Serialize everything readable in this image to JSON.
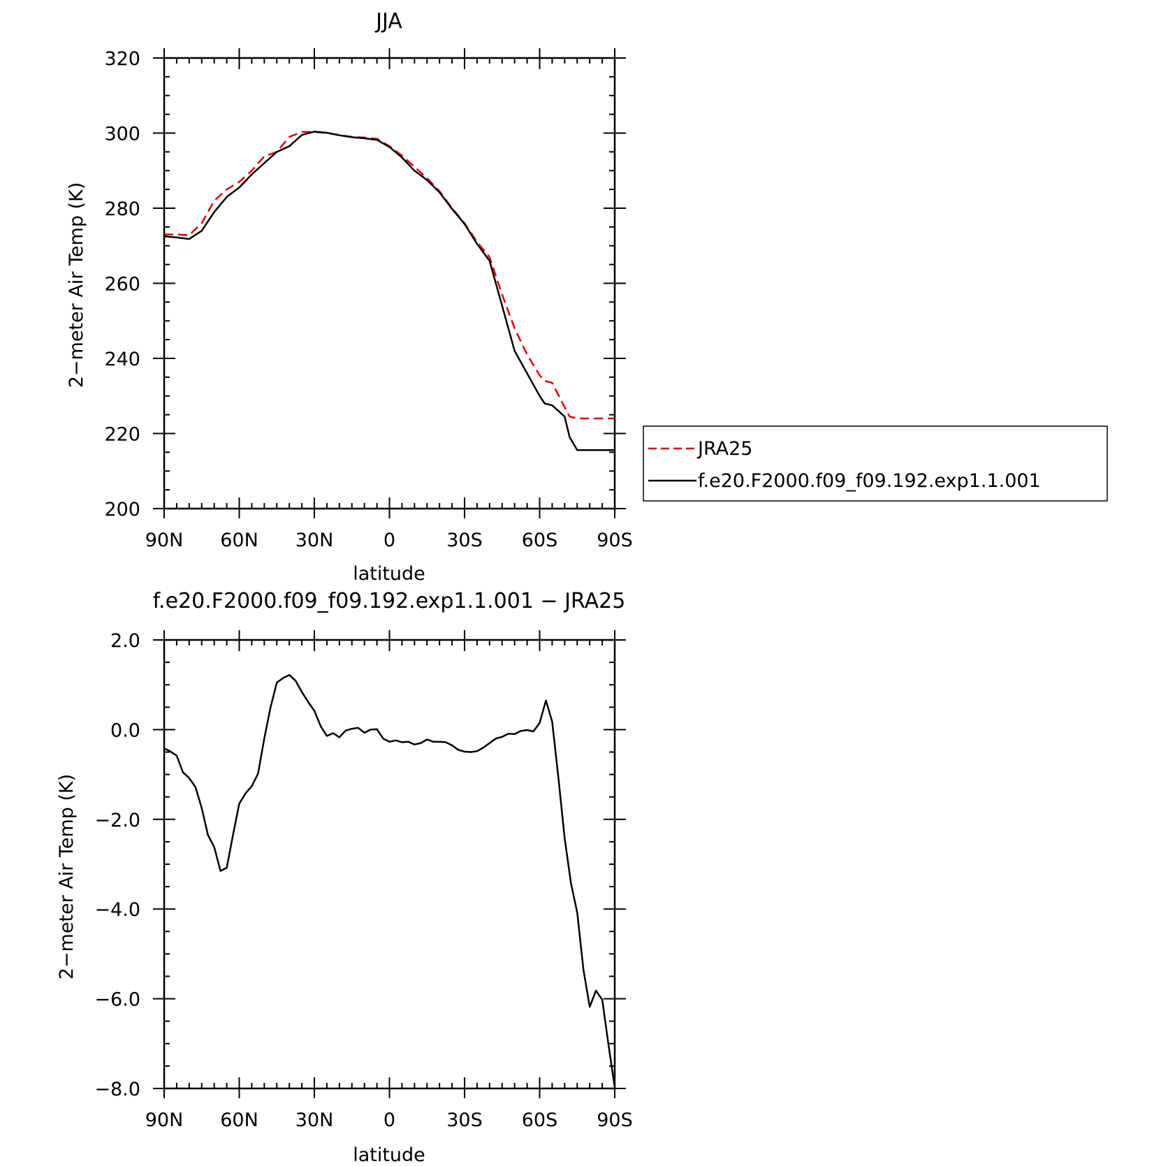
{
  "chart_data": [
    {
      "type": "line",
      "title": "JJA",
      "xlabel": "latitude",
      "ylabel": "2−meter Air Temp (K)",
      "xlim": [
        90,
        -90
      ],
      "ylim": [
        200,
        320
      ],
      "x_ticks": [
        90,
        60,
        30,
        0,
        -30,
        -60,
        -90
      ],
      "x_tick_labels": [
        "90N",
        "60N",
        "30N",
        "0",
        "30S",
        "60S",
        "90S"
      ],
      "y_ticks": [
        200,
        220,
        240,
        260,
        280,
        300,
        320
      ],
      "y_tick_labels": [
        "200",
        "220",
        "240",
        "260",
        "280",
        "300",
        "320"
      ],
      "grid": false,
      "legend": {
        "placement": "right-outside",
        "entries": [
          {
            "label": "JRA25",
            "color": "#e00000",
            "dash": "dashed"
          },
          {
            "label": "f.e20.F2000.f09_f09.192.exp1.1.001",
            "color": "#000000",
            "dash": "solid"
          }
        ]
      },
      "x": [
        90,
        85,
        80,
        75,
        70,
        65,
        60,
        55,
        50,
        45,
        40,
        35,
        30,
        25,
        20,
        15,
        10,
        5,
        0,
        -5,
        -10,
        -15,
        -20,
        -25,
        -30,
        -35,
        -40,
        -45,
        -50,
        -55,
        -60,
        -62,
        -65,
        -70,
        -72,
        -75,
        -80,
        -83,
        -85,
        -87,
        -90
      ],
      "series": [
        {
          "name": "JRA25",
          "color": "#e00000",
          "dash": "dashed",
          "values": [
            273,
            273,
            272.8,
            276,
            282,
            285,
            287,
            290,
            293.8,
            295,
            299,
            300.3,
            300.3,
            300,
            299.5,
            299,
            298.8,
            298.5,
            296.5,
            294,
            291,
            288,
            284.5,
            280,
            276,
            271,
            267,
            257,
            248,
            241,
            235.5,
            234,
            233.5,
            227,
            224.5,
            224,
            224,
            224,
            224,
            224,
            224
          ]
        },
        {
          "name": "f.e20.F2000.f09_f09.192.exp1.1.001",
          "color": "#000000",
          "dash": "solid",
          "values": [
            272.5,
            272.2,
            271.8,
            274,
            279,
            283,
            285.5,
            289,
            292,
            295,
            296.5,
            299.5,
            300.4,
            300.1,
            299.4,
            298.9,
            298.6,
            298.2,
            296.3,
            293.5,
            290,
            287.5,
            284.2,
            279.8,
            275.8,
            270.5,
            266,
            254,
            242,
            236,
            230,
            228,
            227.5,
            224.5,
            219,
            215.6,
            215.6,
            215.6,
            215.6,
            215.6,
            215.6
          ]
        }
      ]
    },
    {
      "type": "line",
      "title": "f.e20.F2000.f09_f09.192.exp1.1.001 − JRA25",
      "xlabel": "latitude",
      "ylabel": "2−meter Air Temp (K)",
      "xlim": [
        90,
        -90
      ],
      "ylim": [
        -8,
        2
      ],
      "x_ticks": [
        90,
        60,
        30,
        0,
        -30,
        -60,
        -90
      ],
      "x_tick_labels": [
        "90N",
        "60N",
        "30N",
        "0",
        "30S",
        "60S",
        "90S"
      ],
      "y_ticks": [
        -8,
        -6,
        -4,
        -2,
        0,
        2
      ],
      "y_tick_labels": [
        "−8.0",
        "−6.0",
        "−4.0",
        "−2.0",
        "0.0",
        "2.0"
      ],
      "grid": false,
      "x": [
        90,
        88,
        85,
        82.5,
        80,
        77.5,
        75,
        72.5,
        70,
        67.5,
        65,
        62.5,
        60,
        57.5,
        55,
        52.5,
        50,
        47.5,
        45,
        42.5,
        40,
        37.5,
        35,
        32.5,
        30,
        27.5,
        25,
        22.5,
        20,
        17.5,
        15,
        12.5,
        10,
        7.5,
        5,
        2.5,
        0,
        -2.5,
        -5,
        -7.5,
        -10,
        -12.5,
        -15,
        -17.5,
        -20,
        -22.5,
        -25,
        -27.5,
        -30,
        -32.5,
        -35,
        -37.5,
        -40,
        -42.5,
        -45,
        -47.5,
        -50,
        -52.5,
        -55,
        -57.5,
        -60,
        -62.5,
        -65,
        -67.5,
        -70,
        -72.5,
        -75,
        -77.5,
        -80,
        -82.5,
        -85,
        -87.5,
        -90
      ],
      "series": [
        {
          "name": "f.e20.F2000.f09_f09.192.exp1.1.001 − JRA25",
          "color": "#000000",
          "dash": "solid",
          "values": [
            -0.42,
            -0.47,
            -0.58,
            -0.95,
            -1.08,
            -1.28,
            -1.75,
            -2.35,
            -2.62,
            -3.15,
            -3.08,
            -2.35,
            -1.65,
            -1.42,
            -1.26,
            -0.98,
            -0.2,
            0.5,
            1.05,
            1.15,
            1.22,
            1.09,
            0.84,
            0.62,
            0.42,
            0.08,
            -0.14,
            -0.08,
            -0.17,
            -0.02,
            0.02,
            0.04,
            -0.07,
            0.0,
            0.01,
            -0.2,
            -0.27,
            -0.24,
            -0.28,
            -0.27,
            -0.33,
            -0.3,
            -0.22,
            -0.27,
            -0.27,
            -0.28,
            -0.35,
            -0.45,
            -0.49,
            -0.5,
            -0.48,
            -0.4,
            -0.3,
            -0.2,
            -0.16,
            -0.09,
            -0.1,
            -0.03,
            -0.01,
            -0.04,
            0.15,
            0.65,
            0.18,
            -1.08,
            -2.42,
            -3.42,
            -4.08,
            -5.35,
            -6.18,
            -5.82,
            -6.02,
            -7.02,
            -7.98
          ]
        }
      ]
    }
  ]
}
